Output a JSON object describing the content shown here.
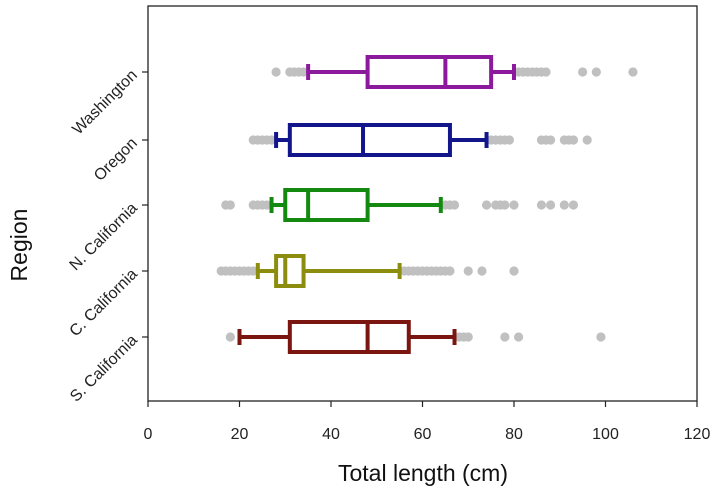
{
  "chart_data": {
    "type": "boxplot",
    "orientation": "horizontal",
    "xlabel": "Total length (cm)",
    "ylabel": "Region",
    "xlim": [
      0,
      120
    ],
    "xticks": [
      0,
      20,
      40,
      60,
      80,
      100,
      120
    ],
    "grid": false,
    "outlier_color": "#c0c0c0",
    "categories": [
      "Washington",
      "Oregon",
      "N. California",
      "C. California",
      "S. California"
    ],
    "series": [
      {
        "name": "Washington",
        "color": "#8b1a9c",
        "whisker_low": 35,
        "q1": 48,
        "median": 65,
        "q3": 75,
        "whisker_high": 80,
        "outliers": [
          28,
          31,
          32,
          33,
          34,
          81,
          82,
          83,
          84,
          85,
          86,
          87,
          95,
          98,
          106
        ]
      },
      {
        "name": "Oregon",
        "color": "#12168a",
        "whisker_low": 28,
        "q1": 31,
        "median": 47,
        "q3": 66,
        "whisker_high": 74,
        "outliers": [
          23,
          24,
          25,
          26,
          27,
          75,
          76,
          77,
          78,
          79,
          86,
          87,
          88,
          91,
          92,
          93,
          96
        ]
      },
      {
        "name": "N. California",
        "color": "#138a0f",
        "whisker_low": 27,
        "q1": 30,
        "median": 35,
        "q3": 48,
        "whisker_high": 64,
        "outliers": [
          17,
          18,
          23,
          24,
          25,
          26,
          65,
          66,
          67,
          74,
          76,
          77,
          78,
          80,
          86,
          88,
          91,
          93
        ]
      },
      {
        "name": "C. California",
        "color": "#8c8c0e",
        "whisker_low": 24,
        "q1": 28,
        "median": 30,
        "q3": 34,
        "whisker_high": 55,
        "outliers": [
          16,
          17,
          18,
          19,
          20,
          21,
          22,
          23,
          56,
          57,
          58,
          59,
          60,
          61,
          62,
          63,
          64,
          65,
          66,
          70,
          73,
          80
        ]
      },
      {
        "name": "S. California",
        "color": "#7a1510",
        "whisker_low": 20,
        "q1": 31,
        "median": 48,
        "q3": 57,
        "whisker_high": 67,
        "outliers": [
          18,
          68,
          69,
          70,
          78,
          81,
          99
        ]
      }
    ]
  }
}
